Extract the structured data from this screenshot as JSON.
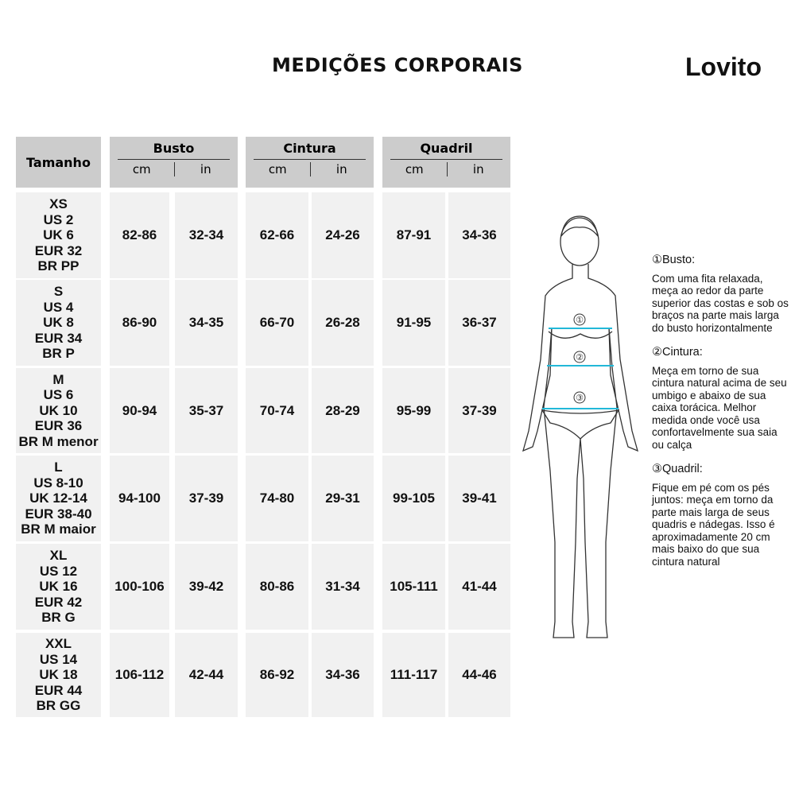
{
  "title": "MEDIÇÕES CORPORAIS",
  "logo": "Lovito",
  "table": {
    "size_header": "Tamanho",
    "groups": [
      {
        "label": "Busto",
        "units": [
          "cm",
          "in"
        ]
      },
      {
        "label": "Cintura",
        "units": [
          "cm",
          "in"
        ]
      },
      {
        "label": "Quadril",
        "units": [
          "cm",
          "in"
        ]
      }
    ],
    "rows": [
      {
        "size": [
          "XS",
          "US 2",
          "UK 6",
          "EUR 32",
          "BR PP"
        ],
        "values": [
          "82-86",
          "32-34",
          "62-66",
          "24-26",
          "87-91",
          "34-36"
        ]
      },
      {
        "size": [
          "S",
          "US 4",
          "UK 8",
          "EUR 34",
          "BR P"
        ],
        "values": [
          "86-90",
          "34-35",
          "66-70",
          "26-28",
          "91-95",
          "36-37"
        ]
      },
      {
        "size": [
          "M",
          "US 6",
          "UK 10",
          "EUR 36",
          "BR M menor"
        ],
        "values": [
          "90-94",
          "35-37",
          "70-74",
          "28-29",
          "95-99",
          "37-39"
        ]
      },
      {
        "size": [
          "L",
          "US 8-10",
          "UK 12-14",
          "EUR 38-40",
          "BR M maior"
        ],
        "values": [
          "94-100",
          "37-39",
          "74-80",
          "29-31",
          "99-105",
          "39-41"
        ]
      },
      {
        "size": [
          "XL",
          "US 12",
          "UK 16",
          "EUR 42",
          "BR G"
        ],
        "values": [
          "100-106",
          "39-42",
          "80-86",
          "31-34",
          "105-111",
          "41-44"
        ]
      },
      {
        "size": [
          "XXL",
          "US 14",
          "UK 18",
          "EUR 44",
          "BR GG"
        ],
        "values": [
          "106-112",
          "42-44",
          "86-92",
          "34-36",
          "111-117",
          "44-46"
        ]
      }
    ]
  },
  "figure": {
    "markers": [
      "①",
      "②",
      "③"
    ],
    "accent": "#22b8d8"
  },
  "notes": [
    {
      "heading": "①Busto:",
      "text": "Com uma fita relaxada, meça ao redor da parte superior das costas e sob os braços na parte mais larga do busto horizontalmente"
    },
    {
      "heading": "②Cintura:",
      "text": "Meça em torno de sua cintura natural acima de seu umbigo e abaixo de sua caixa torácica. Melhor medida onde você usa confortavelmente sua saia ou calça"
    },
    {
      "heading": "③Quadril:",
      "text": "Fique em pé com os pés juntos: meça em torno da parte mais larga de seus quadris e nádegas. Isso é aproximadamente 20 cm mais baixo do que sua cintura natural"
    }
  ]
}
